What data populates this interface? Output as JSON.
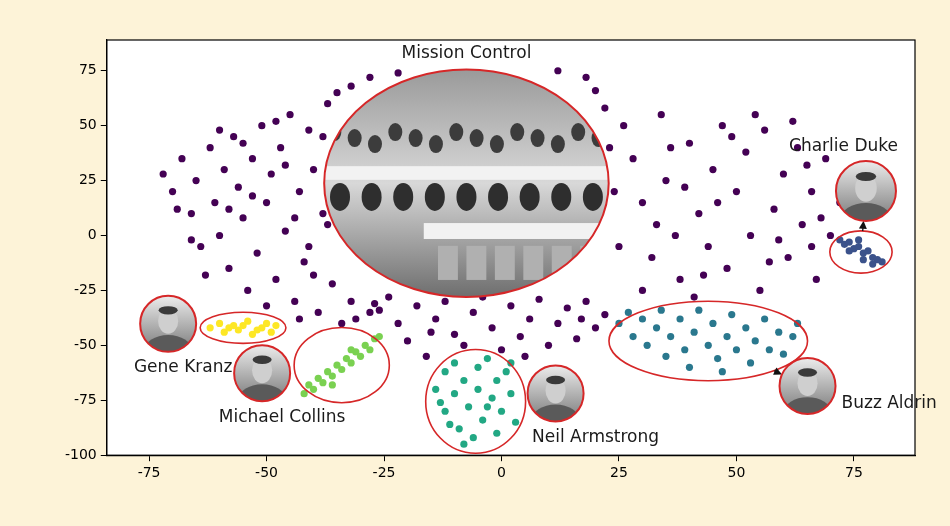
{
  "chart_data": {
    "type": "scatter",
    "xlim": [
      -84,
      88
    ],
    "ylim": [
      -100,
      89
    ],
    "xticks": [
      -75,
      -50,
      -25,
      0,
      25,
      50,
      75
    ],
    "yticks": [
      -100,
      -75,
      -50,
      -25,
      0,
      25,
      50,
      75
    ],
    "grid": false,
    "series": [
      {
        "name": "Mission Control",
        "color": "#440154",
        "marker": "circle",
        "x": [
          -72,
          -70,
          -68,
          -66,
          -65,
          -64,
          -62,
          -61,
          -60,
          -59,
          -58,
          -57,
          -56,
          -55,
          -54,
          -53,
          -52,
          -51,
          -50,
          -49,
          -48,
          -47,
          -46,
          -45,
          -44,
          -43,
          -42,
          -41,
          -40,
          -39,
          -38,
          -37,
          -36,
          -35,
          -34,
          -63,
          -58,
          -55,
          -50,
          -46,
          -44,
          -41,
          -38,
          -66,
          -53,
          -48,
          -43,
          -40,
          -60,
          -69,
          -32,
          -31,
          -28,
          -26,
          -24,
          -22,
          -20,
          -18,
          -16,
          -14,
          -12,
          -10,
          -8,
          -6,
          -4,
          -2,
          0,
          2,
          4,
          6,
          8,
          10,
          12,
          14,
          16,
          18,
          20,
          22,
          -27,
          -15,
          5,
          17,
          -32,
          -28,
          20,
          18,
          22,
          -36,
          -37,
          24,
          25,
          23,
          -22,
          12,
          26,
          28,
          30,
          32,
          34,
          35,
          37,
          38,
          40,
          42,
          44,
          45,
          47,
          48,
          50,
          52,
          53,
          55,
          56,
          58,
          60,
          61,
          63,
          64,
          66,
          67,
          69,
          70,
          72,
          74,
          30,
          36,
          41,
          46,
          54,
          59,
          62,
          65,
          68,
          66,
          33,
          39,
          43,
          49,
          57
        ],
        "values": [
          28,
          20,
          35,
          10,
          25,
          -5,
          40,
          15,
          0,
          30,
          -15,
          45,
          22,
          8,
          -25,
          35,
          -8,
          50,
          15,
          28,
          -20,
          40,
          2,
          55,
          -30,
          20,
          -12,
          48,
          30,
          -35,
          10,
          60,
          -22,
          65,
          -40,
          -18,
          12,
          42,
          -32,
          32,
          8,
          -5,
          45,
          -2,
          18,
          52,
          -38,
          -18,
          48,
          12,
          -30,
          -38,
          -35,
          -34,
          -28,
          -40,
          -48,
          -32,
          -55,
          -38,
          -30,
          -45,
          -50,
          -35,
          -28,
          -42,
          -52,
          -32,
          -46,
          -38,
          -29,
          -50,
          -40,
          -33,
          -47,
          -30,
          -42,
          -36,
          -31,
          -44,
          -55,
          -38,
          68,
          72,
          66,
          72,
          58,
          30,
          5,
          20,
          -5,
          40,
          74,
          75,
          50,
          35,
          15,
          -10,
          55,
          25,
          0,
          -20,
          42,
          10,
          -5,
          30,
          50,
          -15,
          20,
          38,
          0,
          -25,
          48,
          12,
          28,
          -10,
          40,
          5,
          20,
          -20,
          35,
          0,
          15,
          25,
          -25,
          40,
          -28,
          15,
          55,
          -2,
          52,
          32,
          8,
          -5,
          5,
          22,
          -18,
          45,
          -12
        ]
      },
      {
        "name": "Charlie Duke",
        "color": "#3b528b",
        "marker": "circle",
        "x": [
          72,
          73,
          74,
          75,
          76,
          77,
          78,
          79,
          80,
          81,
          74,
          77,
          79,
          76
        ],
        "values": [
          -2,
          -4,
          -3,
          -6,
          -5,
          -8,
          -7,
          -10,
          -11,
          -12,
          -7,
          -11,
          -13,
          -2
        ]
      },
      {
        "name": "Gene Kranz",
        "color": "#fde725",
        "marker": "circle",
        "x": [
          -62,
          -60,
          -59,
          -57,
          -56,
          -54,
          -53,
          -51,
          -50,
          -49,
          -48,
          -55,
          -58,
          -52
        ],
        "values": [
          -42,
          -40,
          -44,
          -41,
          -43,
          -39,
          -45,
          -42,
          -40,
          -44,
          -41,
          -41,
          -42,
          -43
        ]
      },
      {
        "name": "Michael Collins",
        "color": "#7ad151",
        "marker": "circle",
        "x": [
          -42,
          -41,
          -40,
          -39,
          -38,
          -37,
          -36,
          -35,
          -34,
          -33,
          -32,
          -31,
          -30,
          -29,
          -28,
          -27,
          -26,
          -36,
          -32
        ],
        "values": [
          -72,
          -68,
          -70,
          -65,
          -67,
          -62,
          -64,
          -59,
          -61,
          -56,
          -58,
          -53,
          -55,
          -50,
          -52,
          -47,
          -46,
          -68,
          -52
        ]
      },
      {
        "name": "Neil Armstrong",
        "color": "#22a884",
        "marker": "circle",
        "x": [
          -14,
          -12,
          -12,
          -10,
          -10,
          -9,
          -8,
          -7,
          -6,
          -5,
          -5,
          -4,
          -3,
          -2,
          -1,
          -1,
          0,
          1,
          2,
          3,
          -13,
          -8,
          2,
          -3,
          -11
        ],
        "values": [
          -70,
          -62,
          -80,
          -58,
          -72,
          -88,
          -66,
          -78,
          -92,
          -60,
          -70,
          -84,
          -56,
          -74,
          -66,
          -90,
          -80,
          -62,
          -72,
          -85,
          -76,
          -95,
          -58,
          -78,
          -86
        ]
      },
      {
        "name": "Buzz Aldrin",
        "color": "#2a788e",
        "marker": "circle",
        "x": [
          25,
          27,
          28,
          30,
          31,
          33,
          34,
          35,
          36,
          38,
          39,
          40,
          41,
          42,
          44,
          45,
          46,
          48,
          49,
          50,
          52,
          53,
          54,
          56,
          57,
          59,
          60,
          62,
          63,
          47
        ],
        "values": [
          -40,
          -35,
          -46,
          -38,
          -50,
          -42,
          -34,
          -55,
          -46,
          -38,
          -52,
          -60,
          -44,
          -34,
          -50,
          -40,
          -56,
          -46,
          -36,
          -52,
          -42,
          -58,
          -48,
          -38,
          -52,
          -44,
          -54,
          -46,
          -40,
          -62
        ]
      }
    ]
  }
}
